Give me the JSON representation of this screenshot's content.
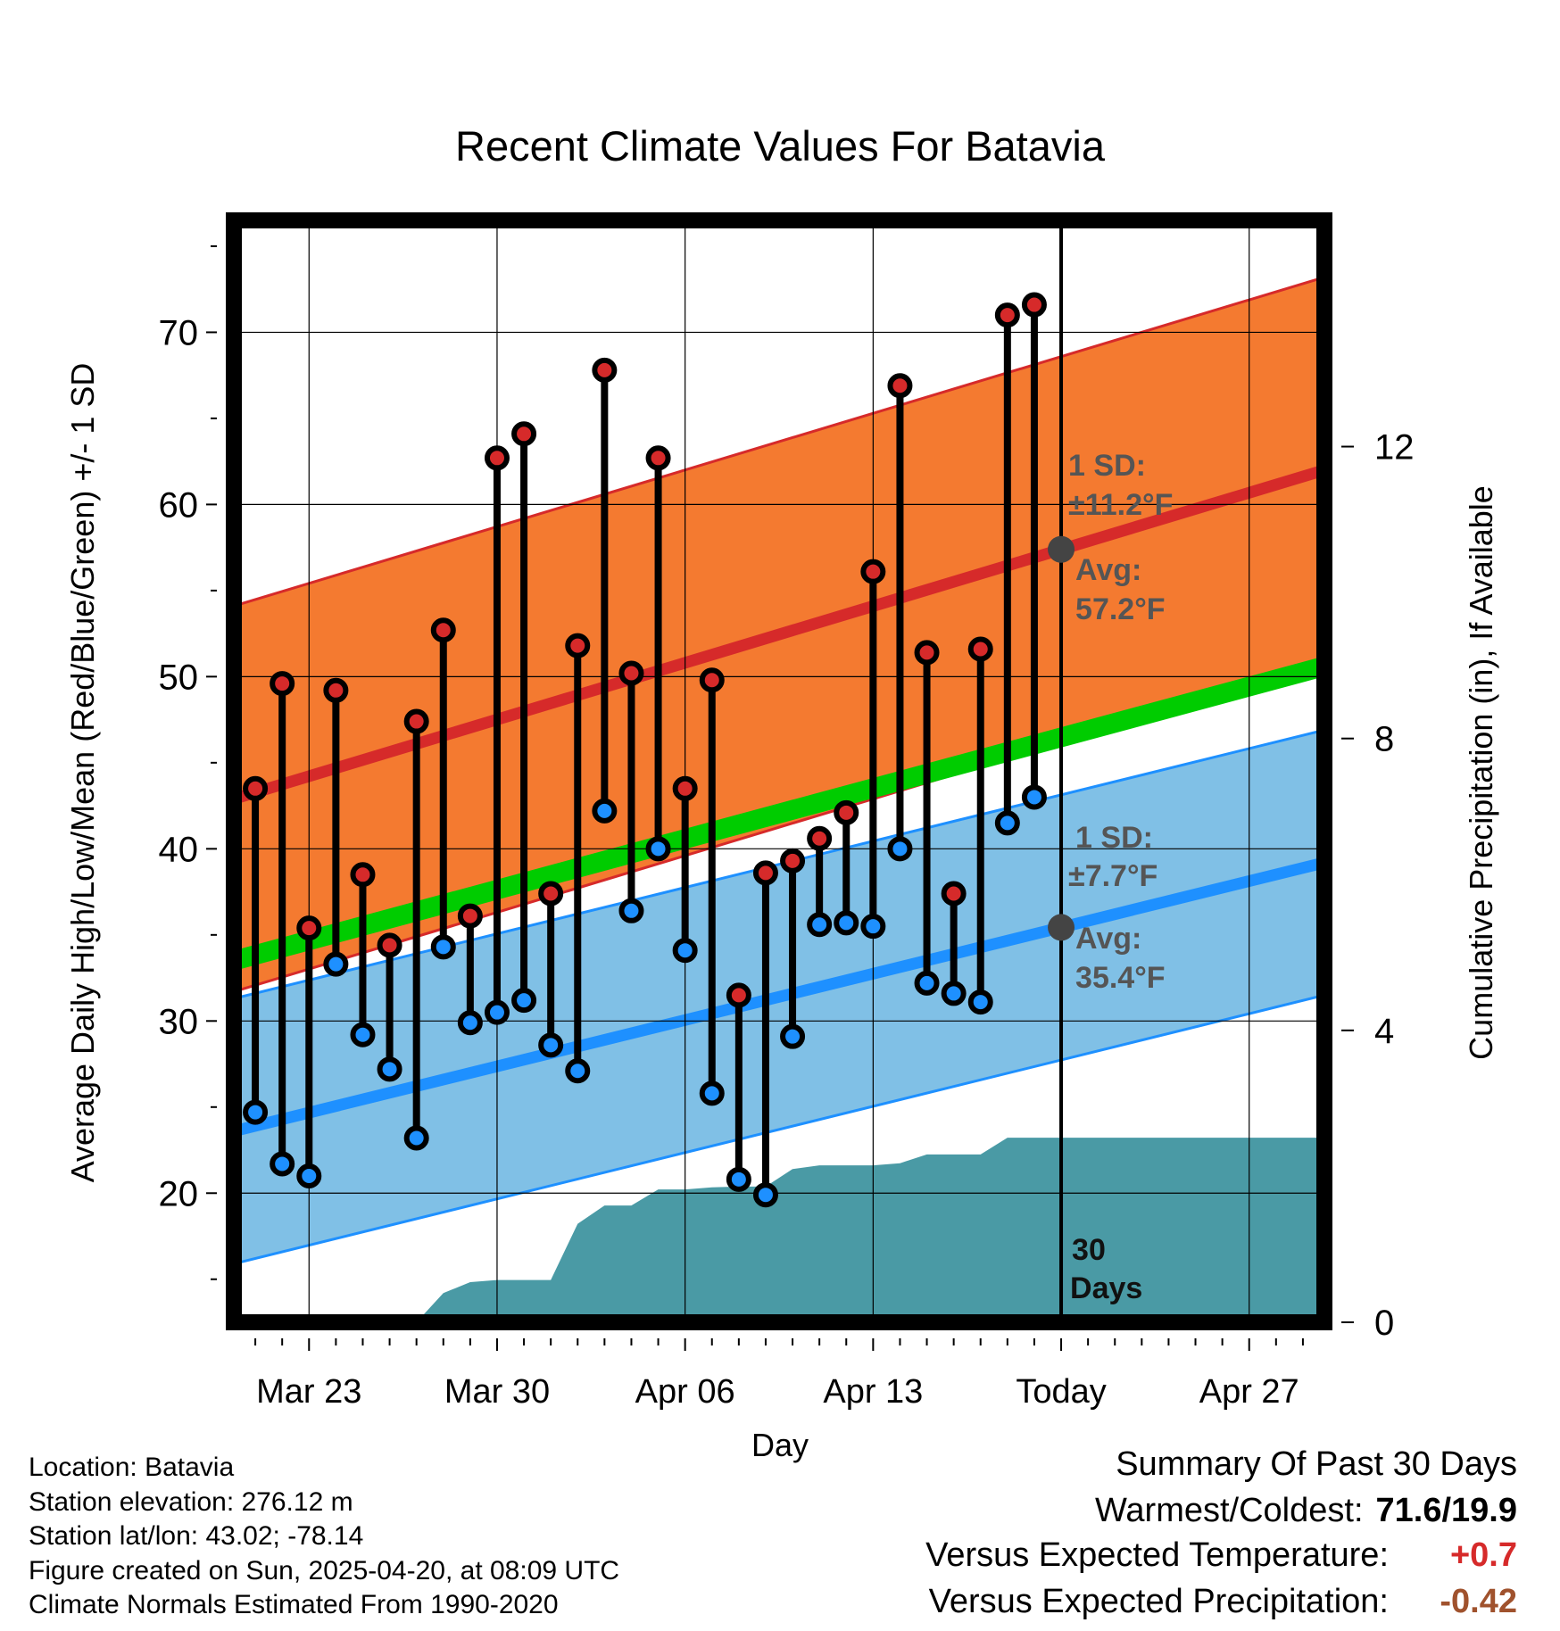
{
  "chart_data": {
    "type": "line",
    "title": "Recent Climate Values For Batavia",
    "xlabel": "Day",
    "ylabel": "Average Daily High/Low/Mean (Red/Blue/Green) +/- 1 SD",
    "y2label": "Cumulative Precipitation (in), If Available",
    "ylim": [
      12.5,
      76.5
    ],
    "y2lim": [
      0,
      15.1
    ],
    "yticks": [
      20,
      30,
      40,
      50,
      60,
      70
    ],
    "y2ticks": [
      0,
      4,
      8,
      12
    ],
    "x_tick_labels": [
      {
        "day": 3,
        "label": "Mar 23"
      },
      {
        "day": 10,
        "label": "Mar 30"
      },
      {
        "day": 17,
        "label": "Apr 06"
      },
      {
        "day": 24,
        "label": "Apr 13"
      },
      {
        "day": 31,
        "label": "Today"
      },
      {
        "day": 38,
        "label": "Apr 27"
      }
    ],
    "xlim": [
      0.2,
      40.8
    ],
    "today_day": 31,
    "grid": true,
    "observed_days": [
      1,
      2,
      3,
      4,
      5,
      6,
      7,
      8,
      9,
      10,
      11,
      12,
      13,
      14,
      15,
      16,
      17,
      18,
      19,
      20,
      21,
      22,
      23,
      24,
      25,
      26,
      27,
      28,
      29,
      30
    ],
    "observed_high": [
      43.5,
      49.6,
      35.4,
      49.2,
      38.5,
      34.4,
      47.4,
      52.7,
      36.1,
      62.7,
      64.1,
      37.4,
      51.8,
      67.8,
      50.2,
      62.7,
      43.5,
      49.8,
      31.5,
      38.6,
      39.3,
      40.6,
      42.1,
      56.1,
      66.9,
      51.4,
      37.4,
      51.6,
      71.0,
      71.6
    ],
    "observed_low": [
      24.7,
      21.7,
      21.0,
      33.3,
      29.2,
      27.2,
      23.2,
      34.3,
      29.9,
      30.5,
      31.2,
      28.6,
      27.1,
      42.2,
      36.4,
      40.0,
      34.1,
      25.8,
      20.8,
      19.9,
      29.1,
      35.6,
      35.7,
      35.5,
      40.0,
      32.2,
      31.6,
      31.1,
      41.5,
      43.0
    ],
    "normal_high": {
      "start": 42.9,
      "end": 62.0
    },
    "normal_high_sd": 11.2,
    "normal_low": {
      "start": 23.6,
      "end": 39.2
    },
    "normal_low_sd": 7.7,
    "normal_mean": {
      "start": 33.5,
      "end": 50.6
    },
    "precip_cumulative": {
      "days": [
        7,
        8,
        9,
        10,
        11,
        12,
        13,
        14,
        15,
        16,
        17,
        18,
        19,
        20,
        21,
        22,
        23,
        24,
        25,
        26,
        27,
        28,
        29,
        30,
        40.8
      ],
      "values": [
        0,
        0.4,
        0.55,
        0.58,
        0.58,
        0.58,
        1.35,
        1.6,
        1.6,
        1.82,
        1.82,
        1.85,
        1.86,
        1.86,
        2.1,
        2.15,
        2.15,
        2.15,
        2.18,
        2.3,
        2.3,
        2.3,
        2.53,
        2.53,
        2.53
      ]
    },
    "annotations": {
      "high_sd_label": "1 SD:",
      "high_sd_value": "±11.2°F",
      "high_avg_label": "Avg:",
      "high_avg_value": "57.2°F",
      "low_sd_label": "1 SD:",
      "low_sd_value": "±7.7°F",
      "low_avg_label": "Avg:",
      "low_avg_value": "35.4°F",
      "days_label_1": "30",
      "days_label_2": "Days"
    },
    "colors": {
      "high_band": "#f47a30",
      "high_line": "#d62a2a",
      "low_band": "#80c0e6",
      "low_line": "#1e90ff",
      "mean_line": "#00cc00",
      "precip": "#4a9aa5",
      "high_point": "#d62a2a",
      "low_point": "#1e90ff",
      "today_marker": "#444444"
    }
  },
  "info": {
    "location": "Location: Batavia",
    "elevation": "Station elevation: 276.12 m",
    "latlon": "Station lat/lon: 43.02; -78.14",
    "created": "Figure created on Sun, 2025-04-20, at 08:09 UTC",
    "normals": "Climate Normals Estimated From 1990-2020"
  },
  "summary": {
    "heading": "Summary Of Past 30 Days",
    "warm_cold_label": "Warmest/Coldest:",
    "warm_cold_value": "71.6/19.9",
    "temp_label": "Versus Expected Temperature:",
    "temp_value": "+0.7",
    "temp_color": "#d62a2a",
    "precip_label": "Versus Expected Precipitation:",
    "precip_value": "-0.42",
    "precip_color": "#a0522d"
  }
}
